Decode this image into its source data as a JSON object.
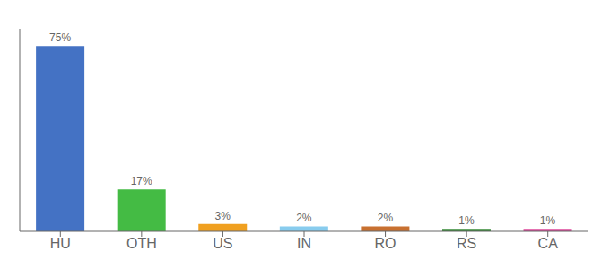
{
  "chart_data": {
    "type": "bar",
    "categories": [
      "HU",
      "OTH",
      "US",
      "IN",
      "RO",
      "RS",
      "CA"
    ],
    "values": [
      75,
      17,
      3,
      2,
      2,
      1,
      1
    ],
    "value_labels": [
      "75%",
      "17%",
      "3%",
      "2%",
      "2%",
      "1%",
      "1%"
    ],
    "colors": [
      "#4472c4",
      "#44bb44",
      "#f0a020",
      "#88ccee",
      "#c87030",
      "#338833",
      "#dd4499"
    ],
    "ylim": [
      0,
      82
    ],
    "grid": false,
    "data_labels": true,
    "tick_labels": "x"
  }
}
